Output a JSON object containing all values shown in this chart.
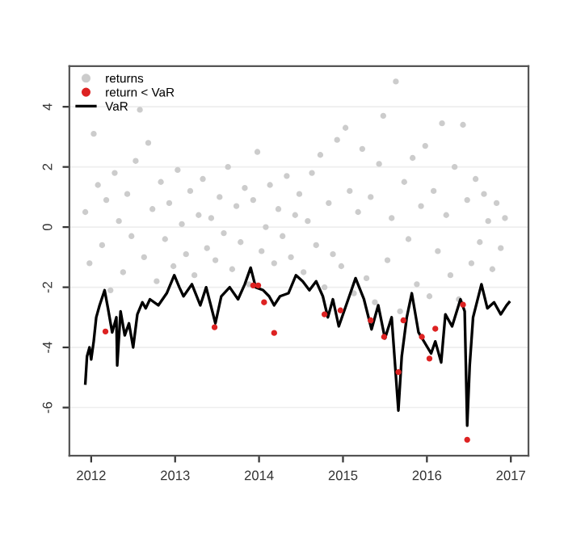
{
  "chart_data": {
    "type": "scatter",
    "xlim": [
      2011.74,
      2017.21
    ],
    "xticks": [
      2012,
      2013,
      2014,
      2015,
      2016,
      2017
    ],
    "ylim": [
      -7.6,
      5.35
    ],
    "yticks": [
      -6,
      -4,
      -2,
      0,
      2,
      4
    ],
    "grid": "y",
    "legend": "top left",
    "series": [
      {
        "name": "returns",
        "marker": "circle",
        "color": "#cccccc",
        "x": [
          2011.93,
          2011.98,
          2012.03,
          2012.08,
          2012.13,
          2012.18,
          2012.23,
          2012.28,
          2012.33,
          2012.38,
          2012.43,
          2012.48,
          2012.53,
          2012.58,
          2012.63,
          2012.68,
          2012.73,
          2012.78,
          2012.83,
          2012.88,
          2012.93,
          2012.98,
          2013.03,
          2013.08,
          2013.13,
          2013.18,
          2013.23,
          2013.28,
          2013.33,
          2013.38,
          2013.43,
          2013.48,
          2013.53,
          2013.58,
          2013.63,
          2013.68,
          2013.73,
          2013.78,
          2013.83,
          2013.88,
          2013.93,
          2013.98,
          2014.03,
          2014.08,
          2014.13,
          2014.18,
          2014.23,
          2014.28,
          2014.33,
          2014.38,
          2014.43,
          2014.48,
          2014.53,
          2014.58,
          2014.63,
          2014.68,
          2014.73,
          2014.78,
          2014.83,
          2014.88,
          2014.93,
          2014.98,
          2015.03,
          2015.08,
          2015.13,
          2015.18,
          2015.23,
          2015.28,
          2015.33,
          2015.38,
          2015.43,
          2015.48,
          2015.53,
          2015.58,
          2015.63,
          2015.68,
          2015.73,
          2015.78,
          2015.83,
          2015.88,
          2015.93,
          2015.98,
          2016.03,
          2016.08,
          2016.13,
          2016.18,
          2016.23,
          2016.28,
          2016.33,
          2016.38,
          2016.43,
          2016.48,
          2016.53,
          2016.58,
          2016.63,
          2016.68,
          2016.73,
          2016.78,
          2016.83,
          2016.88,
          2016.93
        ],
        "values": [
          0.5,
          -1.2,
          3.1,
          1.4,
          -0.6,
          0.9,
          -2.1,
          1.8,
          0.2,
          -1.5,
          1.1,
          -0.3,
          2.2,
          3.9,
          -1.0,
          2.8,
          0.6,
          -1.8,
          1.5,
          -0.4,
          0.8,
          -1.3,
          1.9,
          0.1,
          -0.9,
          1.2,
          -1.6,
          0.4,
          1.6,
          -0.7,
          0.3,
          -1.1,
          1.0,
          -0.2,
          2.0,
          -1.4,
          0.7,
          -0.5,
          1.3,
          -1.9,
          0.9,
          2.5,
          -0.8,
          0.0,
          1.4,
          -1.2,
          0.6,
          -0.3,
          1.7,
          -1.0,
          0.4,
          1.1,
          -1.5,
          0.2,
          1.8,
          -0.6,
          2.4,
          -2.0,
          0.8,
          -0.9,
          2.9,
          -1.3,
          3.3,
          1.2,
          -2.2,
          0.5,
          2.6,
          -1.7,
          1.0,
          -2.5,
          2.1,
          3.7,
          -1.1,
          0.3,
          4.84,
          -2.8,
          1.5,
          -0.4,
          2.3,
          -1.9,
          0.7,
          2.7,
          -2.3,
          1.2,
          -0.8,
          3.45,
          0.4,
          -1.6,
          2.0,
          -2.4,
          3.4,
          0.9,
          -1.2,
          1.6,
          -0.5,
          1.1,
          0.2,
          -1.4,
          0.8,
          -0.7,
          0.3
        ]
      },
      {
        "name": "return < VaR",
        "marker": "circle",
        "color": "#dd2222",
        "x": [
          2012.17,
          2013.47,
          2013.93,
          2013.99,
          2014.06,
          2014.18,
          2014.78,
          2014.97,
          2015.33,
          2015.49,
          2015.66,
          2015.72,
          2015.94,
          2016.03,
          2016.1,
          2016.43,
          2016.48
        ],
        "values": [
          -3.47,
          -3.33,
          -1.94,
          -1.94,
          -2.5,
          -3.52,
          -2.9,
          -2.77,
          -3.1,
          -3.65,
          -4.82,
          -3.1,
          -3.65,
          -4.37,
          -3.38,
          -2.58,
          -7.07
        ]
      },
      {
        "name": "VaR",
        "type": "line",
        "marker": "none",
        "color": "#000000",
        "x": [
          2011.93,
          2011.95,
          2011.98,
          2012.0,
          2012.03,
          2012.06,
          2012.1,
          2012.16,
          2012.2,
          2012.25,
          2012.3,
          2012.31,
          2012.35,
          2012.4,
          2012.45,
          2012.5,
          2012.55,
          2012.61,
          2012.65,
          2012.7,
          2012.8,
          2012.9,
          2012.99,
          2013.05,
          2013.1,
          2013.2,
          2013.3,
          2013.37,
          2013.48,
          2013.55,
          2013.65,
          2013.75,
          2013.83,
          2013.9,
          2013.96,
          2014.05,
          2014.12,
          2014.18,
          2014.25,
          2014.35,
          2014.44,
          2014.52,
          2014.6,
          2014.68,
          2014.76,
          2014.82,
          2014.88,
          2014.95,
          2015.05,
          2015.15,
          2015.25,
          2015.34,
          2015.42,
          2015.5,
          2015.58,
          2015.66,
          2015.7,
          2015.76,
          2015.82,
          2015.9,
          2016.05,
          2016.1,
          2016.17,
          2016.22,
          2016.3,
          2016.4,
          2016.45,
          2016.48,
          2016.51,
          2016.55,
          2016.65,
          2016.72,
          2016.8,
          2016.88,
          2016.95,
          2016.98
        ],
        "values": [
          -5.2,
          -4.3,
          -4.0,
          -4.4,
          -3.8,
          -3.0,
          -2.6,
          -2.1,
          -2.7,
          -3.5,
          -3.0,
          -4.6,
          -2.8,
          -3.6,
          -3.2,
          -4.0,
          -2.9,
          -2.5,
          -2.7,
          -2.4,
          -2.6,
          -2.2,
          -1.6,
          -2.0,
          -2.3,
          -1.9,
          -2.6,
          -2.0,
          -3.2,
          -2.3,
          -2.0,
          -2.4,
          -1.9,
          -1.35,
          -2.0,
          -2.1,
          -2.3,
          -2.6,
          -2.3,
          -2.2,
          -1.6,
          -1.8,
          -2.1,
          -1.8,
          -2.3,
          -3.0,
          -2.4,
          -3.3,
          -2.5,
          -1.7,
          -2.4,
          -3.4,
          -2.6,
          -3.7,
          -3.0,
          -6.1,
          -4.3,
          -3.0,
          -2.2,
          -3.5,
          -4.2,
          -3.8,
          -4.5,
          -2.9,
          -3.3,
          -2.4,
          -2.8,
          -6.6,
          -4.6,
          -3.0,
          -1.9,
          -2.7,
          -2.5,
          -2.9,
          -2.6,
          -2.5
        ]
      }
    ]
  }
}
